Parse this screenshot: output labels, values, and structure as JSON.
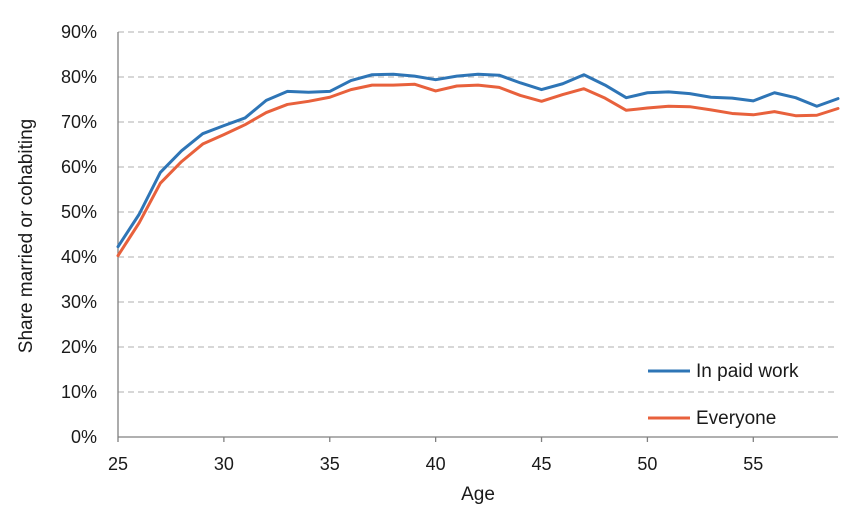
{
  "chart_data": {
    "type": "line",
    "title": "",
    "xlabel": "Age",
    "ylabel": "Share married or cohabiting",
    "xlim": [
      25,
      59
    ],
    "ylim": [
      0,
      90
    ],
    "x_ticks": [
      25,
      30,
      35,
      40,
      45,
      50,
      55
    ],
    "x_tick_labels": [
      "25",
      "30",
      "35",
      "40",
      "45",
      "50",
      "55"
    ],
    "y_ticks": [
      0,
      10,
      20,
      30,
      40,
      50,
      60,
      70,
      80,
      90
    ],
    "y_tick_labels": [
      "0%",
      "10%",
      "20%",
      "30%",
      "40%",
      "50%",
      "60%",
      "70%",
      "80%",
      "90%"
    ],
    "grid": "horizontal dashed",
    "legend_position": "bottom-right",
    "x": [
      25,
      26,
      27,
      28,
      29,
      30,
      31,
      32,
      33,
      34,
      35,
      36,
      37,
      38,
      39,
      40,
      41,
      42,
      43,
      44,
      45,
      46,
      47,
      48,
      49,
      50,
      51,
      52,
      53,
      54,
      55,
      56,
      57,
      58,
      59
    ],
    "series": [
      {
        "name": "In paid work",
        "color": "#2E75B6",
        "values": [
          42.3,
          49.5,
          58.8,
          63.6,
          67.4,
          69.2,
          70.9,
          74.8,
          76.8,
          76.6,
          76.8,
          79.2,
          80.5,
          80.6,
          80.2,
          79.4,
          80.2,
          80.6,
          80.4,
          78.7,
          77.2,
          78.5,
          80.5,
          78.2,
          75.4,
          76.5,
          76.7,
          76.3,
          75.5,
          75.3,
          74.7,
          76.5,
          75.4,
          73.5,
          75.2
        ]
      },
      {
        "name": "Everyone",
        "color": "#E8613C",
        "values": [
          40.3,
          47.6,
          56.4,
          61.2,
          65.1,
          67.2,
          69.4,
          72.1,
          73.9,
          74.6,
          75.5,
          77.2,
          78.2,
          78.2,
          78.4,
          76.9,
          78.0,
          78.2,
          77.7,
          75.9,
          74.6,
          76.1,
          77.4,
          75.3,
          72.6,
          73.1,
          73.5,
          73.4,
          72.7,
          71.9,
          71.6,
          72.3,
          71.4,
          71.5,
          73.0
        ]
      }
    ]
  }
}
